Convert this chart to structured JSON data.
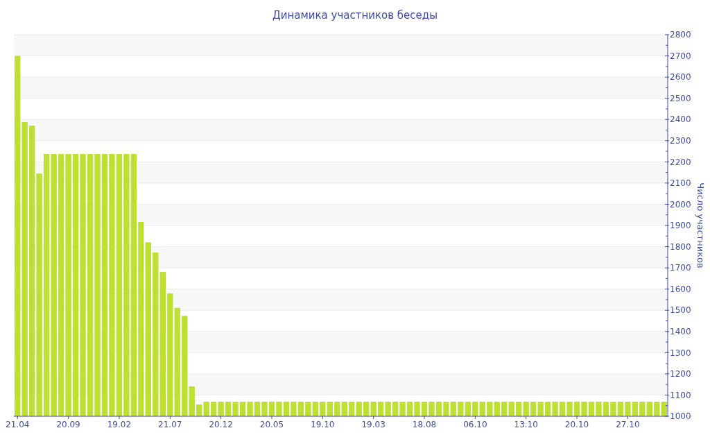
{
  "chart_data": {
    "type": "bar",
    "title": "Динамика участников беседы",
    "y2label": "Число участников",
    "categories": [
      "21.04",
      null,
      null,
      null,
      null,
      null,
      null,
      "20.09",
      null,
      null,
      null,
      null,
      null,
      null,
      "19.02",
      null,
      null,
      null,
      null,
      null,
      null,
      "21.07",
      null,
      null,
      null,
      null,
      null,
      null,
      "20.12",
      null,
      null,
      null,
      null,
      null,
      null,
      "20.05",
      null,
      null,
      null,
      null,
      null,
      null,
      "19.10",
      null,
      null,
      null,
      null,
      null,
      null,
      "19.03",
      null,
      null,
      null,
      null,
      null,
      null,
      "18.08",
      null,
      null,
      null,
      null,
      null,
      null,
      "06.10",
      null,
      null,
      null,
      null,
      null,
      null,
      "13.10",
      null,
      null,
      null,
      null,
      null,
      null,
      "20.10",
      null,
      null,
      null,
      null,
      null,
      null,
      "27.10",
      null,
      null,
      null,
      null,
      null
    ],
    "series": [
      {
        "color": "#bde032",
        "axis": "y2",
        "values": [
          2700,
          2388,
          2371,
          2145,
          2237,
          2237,
          2237,
          2237,
          2237,
          2237,
          2237,
          2237,
          2237,
          2237,
          2237,
          2237,
          2237,
          1916,
          1821,
          1772,
          1681,
          1579,
          1511,
          1474,
          1141,
          1056,
          1069,
          1069,
          1069,
          1069,
          1069,
          1069,
          1069,
          1069,
          1069,
          1069,
          1069,
          1069,
          1069,
          1069,
          1069,
          1069,
          1069,
          1069,
          1069,
          1069,
          1069,
          1069,
          1069,
          1069,
          1069,
          1069,
          1069,
          1069,
          1069,
          1069,
          1069,
          1069,
          1069,
          1069,
          1069,
          1069,
          1069,
          1069,
          1069,
          1069,
          1069,
          1069,
          1069,
          1069,
          1069,
          1069,
          1069,
          1069,
          1069,
          1069,
          1069,
          1069,
          1069,
          1069,
          1069,
          1069,
          1069,
          1069,
          1069,
          1069,
          1069,
          1069,
          1069,
          1069
        ]
      }
    ],
    "y2lim": [
      1000,
      2800
    ],
    "y2ticks": [
      1000,
      1100,
      1200,
      1300,
      1400,
      1500,
      1600,
      1700,
      1800,
      1900,
      2000,
      2100,
      2200,
      2300,
      2400,
      2500,
      2600,
      2700,
      2800
    ],
    "grid": "y"
  }
}
